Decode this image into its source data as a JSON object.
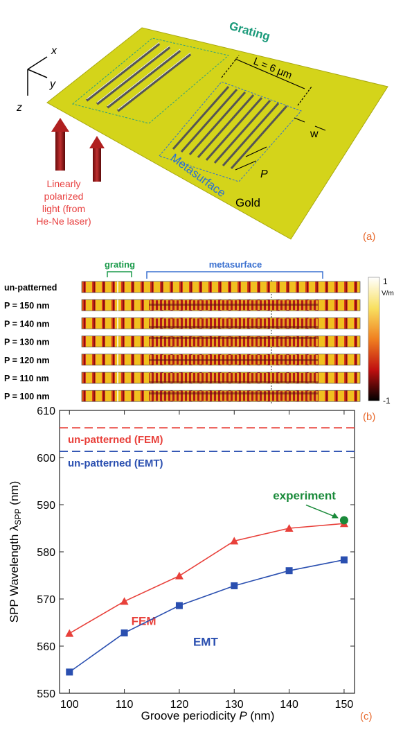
{
  "panel_a": {
    "axes": [
      "x",
      "y",
      "z"
    ],
    "grating": "Grating",
    "length": "L = 6 μm",
    "width": "w",
    "period": "P",
    "metasurface": "Metasurface",
    "gold": "Gold",
    "light": [
      "Linearly",
      "polarized",
      "light (from",
      "He-Ne laser)"
    ],
    "tag": "(a)"
  },
  "panel_b": {
    "grating": "grating",
    "metasurface": "metasurface",
    "rows": [
      "un-patterned",
      "P = 150 nm",
      "P = 140 nm",
      "P = 130 nm",
      "P = 120 nm",
      "P = 110 nm",
      "P = 100 nm"
    ],
    "colorbar": {
      "max": 1,
      "unit": "V/m",
      "min": -1
    },
    "tag": "(b)"
  },
  "chart_data": {
    "type": "line",
    "x": [
      100,
      110,
      120,
      130,
      140,
      150
    ],
    "series": [
      {
        "name": "FEM",
        "color": "#e8403a",
        "marker": "triangle",
        "values": [
          562.7,
          569.5,
          574.9,
          582.3,
          585.0,
          586.0
        ]
      },
      {
        "name": "EMT",
        "color": "#2a4fb0",
        "marker": "square",
        "values": [
          554.5,
          562.8,
          568.6,
          572.8,
          576.0,
          578.3
        ]
      }
    ],
    "reference_lines": [
      {
        "label": "un-patterned (FEM)",
        "value": 606.3,
        "color": "#e8403a"
      },
      {
        "label": "un-patterned (EMT)",
        "value": 601.3,
        "color": "#2a4fb0"
      }
    ],
    "experiment": {
      "label": "experiment",
      "x": 150,
      "y": 586.7,
      "color": "#1a8a3a"
    },
    "xlim": [
      98.2,
      151.9
    ],
    "ylim": [
      550,
      610
    ],
    "xticks": [
      100,
      110,
      120,
      130,
      140,
      150
    ],
    "yticks": [
      550,
      560,
      570,
      580,
      590,
      600,
      610
    ],
    "xlabel": [
      "Groove periodicity ",
      "P",
      " (nm)"
    ],
    "ylabel": [
      "SPP Wavelength λ",
      "SPP",
      " (nm)"
    ],
    "tag": "(c)"
  }
}
